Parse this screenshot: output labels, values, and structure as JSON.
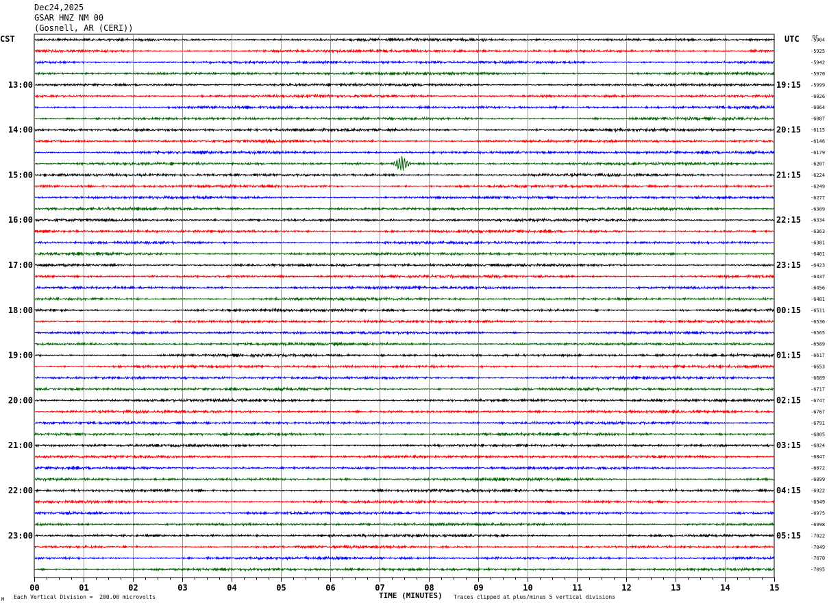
{
  "header": {
    "date": "Dec24,2025",
    "station": "GSAR HNZ NM 00",
    "location": "(Gosnell, AR (CERI))"
  },
  "tz_left": "CST",
  "tz_right": "UTC",
  "dc_label": "DC",
  "footer": {
    "scale_note": "Each Vertical Division =  200.00 microvolts",
    "clip_note": "Traces clipped at plus/minus 5 vertical divisions",
    "logo_mark": "M"
  },
  "colors": {
    "trace_cycle": [
      "#000000",
      "#ff0000",
      "#0000ff",
      "#006400"
    ],
    "grid": "#808080"
  },
  "chart_data": {
    "type": "line",
    "title": "Dec24,2025 GSAR HNZ NM 00 (Gosnell, AR (CERI))",
    "xlabel": "TIME (MINUTES)",
    "ylabel": "",
    "xlim": [
      0,
      15
    ],
    "x_ticks": [
      "00",
      "01",
      "02",
      "03",
      "04",
      "05",
      "06",
      "07",
      "08",
      "09",
      "10",
      "11",
      "12",
      "13",
      "14",
      "15"
    ],
    "left_hour_labels": [
      "13:00",
      "14:00",
      "15:00",
      "16:00",
      "17:00",
      "18:00",
      "19:00",
      "20:00",
      "21:00",
      "22:00",
      "23:00"
    ],
    "right_hour_labels": [
      "19:15",
      "20:15",
      "21:15",
      "22:15",
      "23:15",
      "00:15",
      "01:15",
      "02:15",
      "03:15",
      "04:15",
      "05:15"
    ],
    "trace_count": 48,
    "traces_per_hour": 4,
    "first_hour_label_trace": 4,
    "dc_offsets": [
      "-5904",
      "-5925",
      "-5942",
      "-5970",
      "-5999",
      "-6026",
      "-6064",
      "-6087",
      "-6115",
      "-6146",
      "-6179",
      "-6207",
      "-6224",
      "-6249",
      "-6277",
      "-6309",
      "-6334",
      "-6363",
      "-6381",
      "-6401",
      "-6423",
      "-6437",
      "-6456",
      "-6481",
      "-6511",
      "-6536",
      "-6565",
      "-6589",
      "-6617",
      "-6653",
      "-6689",
      "-6717",
      "-6747",
      "-6767",
      "-6791",
      "-6805",
      "-6824",
      "-6847",
      "-6872",
      "-6899",
      "-6922",
      "-6949",
      "-6975",
      "-6998",
      "-7022",
      "-7049",
      "-7070",
      "-7095"
    ],
    "events": [
      {
        "trace": 11,
        "minute": 7.45,
        "amplitude_divisions": 1.2
      }
    ],
    "grid": true
  }
}
